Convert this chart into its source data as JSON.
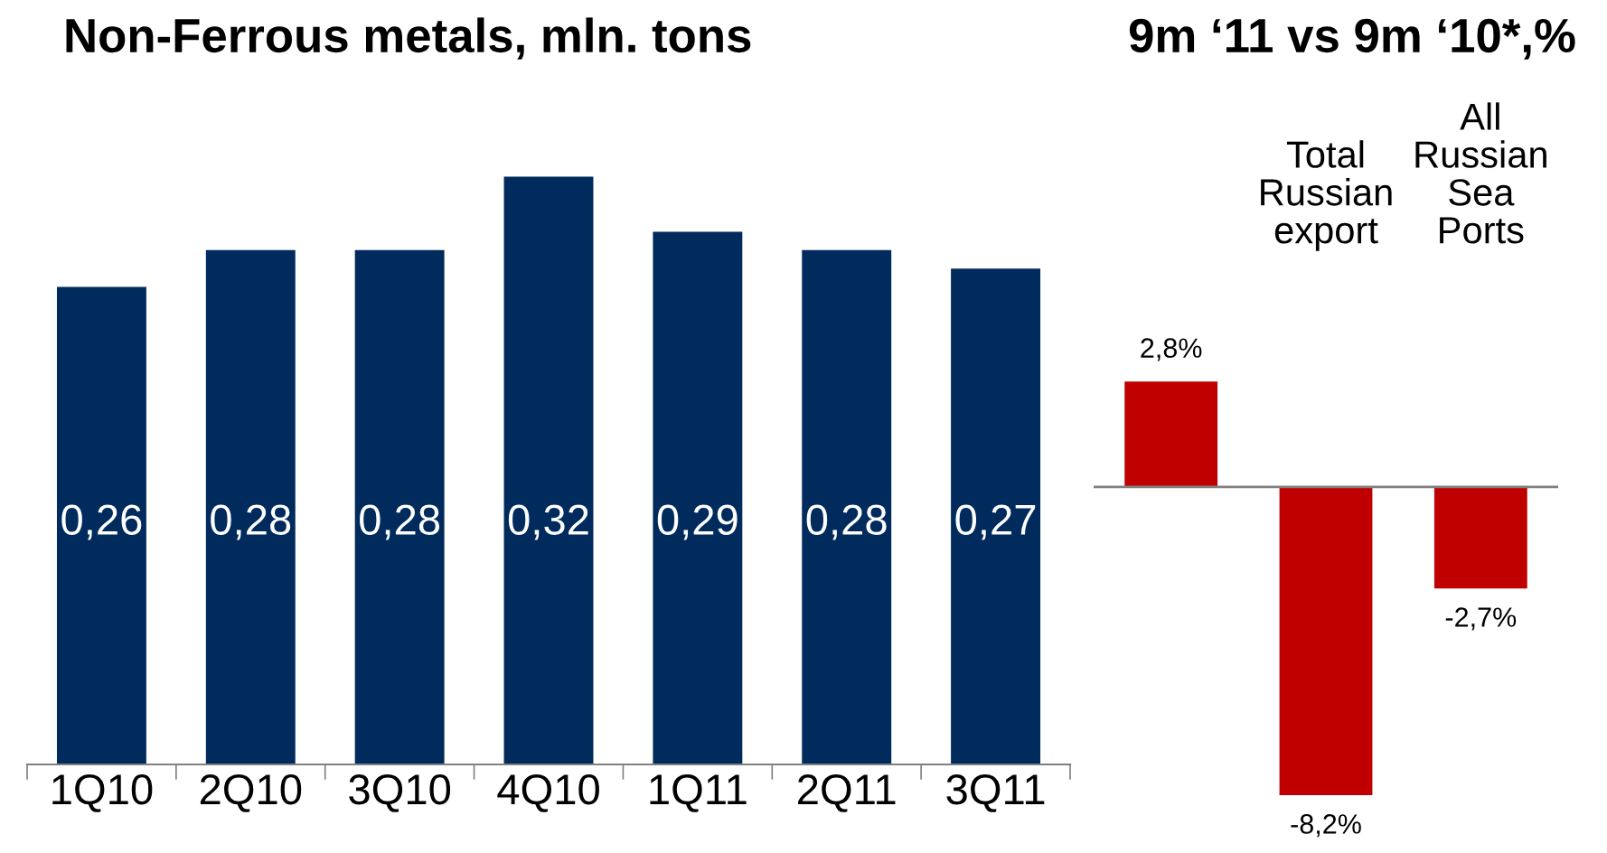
{
  "chart_data": [
    {
      "type": "bar",
      "title": "Non-Ferrous metals, mln. tons",
      "categories": [
        "1Q10",
        "2Q10",
        "3Q10",
        "4Q10",
        "1Q11",
        "2Q11",
        "3Q11"
      ],
      "values": [
        0.26,
        0.28,
        0.28,
        0.32,
        0.29,
        0.28,
        0.27
      ],
      "value_labels": [
        "0,26",
        "0,28",
        "0,28",
        "0,32",
        "0,29",
        "0,28",
        "0,27"
      ],
      "color": "#002b5c",
      "grid": false,
      "legend": false
    },
    {
      "type": "bar",
      "title": "9m ‘11 vs 9m ‘10*,%",
      "categories": [
        null,
        "Total\nRussian\nexport",
        "All\nRussian\nSea\nPorts"
      ],
      "values": [
        2.8,
        -8.2,
        -2.7
      ],
      "value_labels": [
        "2,8%",
        "-8,2%",
        "-2,7%"
      ],
      "color": "#c00000",
      "grid": false,
      "legend": false
    }
  ]
}
